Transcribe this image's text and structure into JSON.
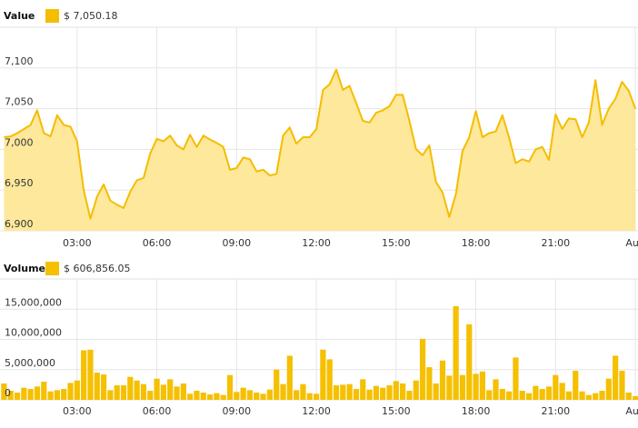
{
  "chart_data": [
    {
      "type": "area",
      "title": "Value",
      "x": [
        0.25,
        0.5,
        0.75,
        1,
        1.25,
        1.5,
        1.75,
        2,
        2.25,
        2.5,
        2.75,
        3,
        3.25,
        3.5,
        3.75,
        4,
        4.25,
        4.5,
        4.75,
        5,
        5.25,
        5.5,
        5.75,
        6,
        6.25,
        6.5,
        6.75,
        7,
        7.25,
        7.5,
        7.75,
        8,
        8.25,
        8.5,
        8.75,
        9,
        9.25,
        9.5,
        9.75,
        10,
        10.25,
        10.5,
        10.75,
        11,
        11.25,
        11.5,
        11.75,
        12,
        12.25,
        12.5,
        12.75,
        13,
        13.25,
        13.5,
        13.75,
        14,
        14.25,
        14.5,
        14.75,
        15,
        15.25,
        15.5,
        15.75,
        16,
        16.25,
        16.5,
        16.75,
        17,
        17.25,
        17.5,
        17.75,
        18,
        18.25,
        18.5,
        18.75,
        19,
        19.25,
        19.5,
        19.75,
        20,
        20.25,
        20.5,
        20.75,
        21,
        21.25,
        21.5,
        21.75,
        22,
        22.25,
        22.5,
        22.75,
        23,
        23.25,
        23.5,
        23.75,
        24
      ],
      "series": [
        {
          "name": "$ 7,050.18",
          "color": "#f5bd00",
          "fill": "#fde89c",
          "values": [
            7015,
            7016,
            7020,
            7025,
            7030,
            7048,
            7020,
            7016,
            7042,
            7030,
            7028,
            7010,
            6950,
            6915,
            6942,
            6957,
            6937,
            6932,
            6928,
            6948,
            6962,
            6965,
            6995,
            7013,
            7010,
            7017,
            7005,
            7000,
            7018,
            7003,
            7017,
            7012,
            7008,
            7003,
            6975,
            6977,
            6990,
            6988,
            6973,
            6975,
            6968,
            6970,
            7017,
            7027,
            7007,
            7015,
            7015,
            7025,
            7073,
            7080,
            7098,
            7073,
            7078,
            7057,
            7035,
            7033,
            7045,
            7048,
            7053,
            7067,
            7067,
            7035,
            7000,
            6993,
            7005,
            6960,
            6947,
            6917,
            6945,
            6998,
            7015,
            7047,
            7015,
            7020,
            7022,
            7042,
            7015,
            6983,
            6988,
            6985,
            7000,
            7003,
            6987,
            7043,
            7025,
            7038,
            7037,
            7015,
            7033,
            7085,
            7030,
            7050,
            7062,
            7083,
            7072,
            7050
          ]
        }
      ],
      "xlim": [
        0.1,
        24.1
      ],
      "xticks": [
        {
          "value": 3,
          "label": "03:00"
        },
        {
          "value": 6,
          "label": "06:00"
        },
        {
          "value": 9,
          "label": "09:00"
        },
        {
          "value": 12,
          "label": "12:00"
        },
        {
          "value": 15,
          "label": "15:00"
        },
        {
          "value": 18,
          "label": "18:00"
        },
        {
          "value": 21,
          "label": "21:00"
        },
        {
          "value": 24,
          "label": "Aug"
        }
      ],
      "ylim": [
        6900,
        7150
      ],
      "yticks": [
        {
          "value": 6900,
          "label": "6,900"
        },
        {
          "value": 6950,
          "label": "6,950"
        },
        {
          "value": 7000,
          "label": "7,000"
        },
        {
          "value": 7050,
          "label": "7,050"
        },
        {
          "value": 7100,
          "label": "7,100"
        }
      ],
      "grid": true
    },
    {
      "type": "bar",
      "title": "Volume",
      "x": [
        0.25,
        0.5,
        0.75,
        1,
        1.25,
        1.5,
        1.75,
        2,
        2.25,
        2.5,
        2.75,
        3,
        3.25,
        3.5,
        3.75,
        4,
        4.25,
        4.5,
        4.75,
        5,
        5.25,
        5.5,
        5.75,
        6,
        6.25,
        6.5,
        6.75,
        7,
        7.25,
        7.5,
        7.75,
        8,
        8.25,
        8.5,
        8.75,
        9,
        9.25,
        9.5,
        9.75,
        10,
        10.25,
        10.5,
        10.75,
        11,
        11.25,
        11.5,
        11.75,
        12,
        12.25,
        12.5,
        12.75,
        13,
        13.25,
        13.5,
        13.75,
        14,
        14.25,
        14.5,
        14.75,
        15,
        15.25,
        15.5,
        15.75,
        16,
        16.25,
        16.5,
        16.75,
        17,
        17.25,
        17.5,
        17.75,
        18,
        18.25,
        18.5,
        18.75,
        19,
        19.25,
        19.5,
        19.75,
        20,
        20.25,
        20.5,
        20.75,
        21,
        21.25,
        21.5,
        21.75,
        22,
        22.25,
        22.5,
        22.75,
        23,
        23.25,
        23.5,
        23.75,
        24
      ],
      "series": [
        {
          "name": "$ 606,856.05",
          "color": "#f5c000",
          "values": [
            2700000,
            1500000,
            1200000,
            2000000,
            1800000,
            2200000,
            3000000,
            1400000,
            1600000,
            1800000,
            2800000,
            3200000,
            8200000,
            8300000,
            4500000,
            4200000,
            1600000,
            2400000,
            2400000,
            3800000,
            3200000,
            2600000,
            1500000,
            3500000,
            2500000,
            3400000,
            2200000,
            2700000,
            1000000,
            1500000,
            1200000,
            900000,
            1100000,
            800000,
            4100000,
            1300000,
            2000000,
            1600000,
            1200000,
            1000000,
            1700000,
            5000000,
            2600000,
            7300000,
            1600000,
            2600000,
            1100000,
            1000000,
            8300000,
            6700000,
            2400000,
            2500000,
            2600000,
            1800000,
            3400000,
            1700000,
            2300000,
            2000000,
            2400000,
            3100000,
            2700000,
            1500000,
            3200000,
            10100000,
            5400000,
            2700000,
            6500000,
            4000000,
            15500000,
            4100000,
            12500000,
            4300000,
            4700000,
            1600000,
            3400000,
            1800000,
            1400000,
            7000000,
            1500000,
            1100000,
            2300000,
            1800000,
            2200000,
            4100000,
            2800000,
            1400000,
            4800000,
            1400000,
            800000,
            1100000,
            1500000,
            3500000,
            7300000,
            4800000,
            1200000,
            600000
          ]
        }
      ],
      "xlim": [
        0.1,
        24.1
      ],
      "xticks": [
        {
          "value": 3,
          "label": "03:00"
        },
        {
          "value": 6,
          "label": "06:00"
        },
        {
          "value": 9,
          "label": "09:00"
        },
        {
          "value": 12,
          "label": "12:00"
        },
        {
          "value": 15,
          "label": "15:00"
        },
        {
          "value": 18,
          "label": "18:00"
        },
        {
          "value": 21,
          "label": "21:00"
        },
        {
          "value": 24,
          "label": "Aug"
        }
      ],
      "ylim": [
        0,
        20000000
      ],
      "yticks": [
        0,
        {
          "value": 5000000,
          "label": "5,000,000"
        },
        {
          "value": 10000000,
          "label": "10,000,000"
        },
        {
          "value": 15000000,
          "label": "15,000,000"
        }
      ],
      "grid": true
    }
  ]
}
